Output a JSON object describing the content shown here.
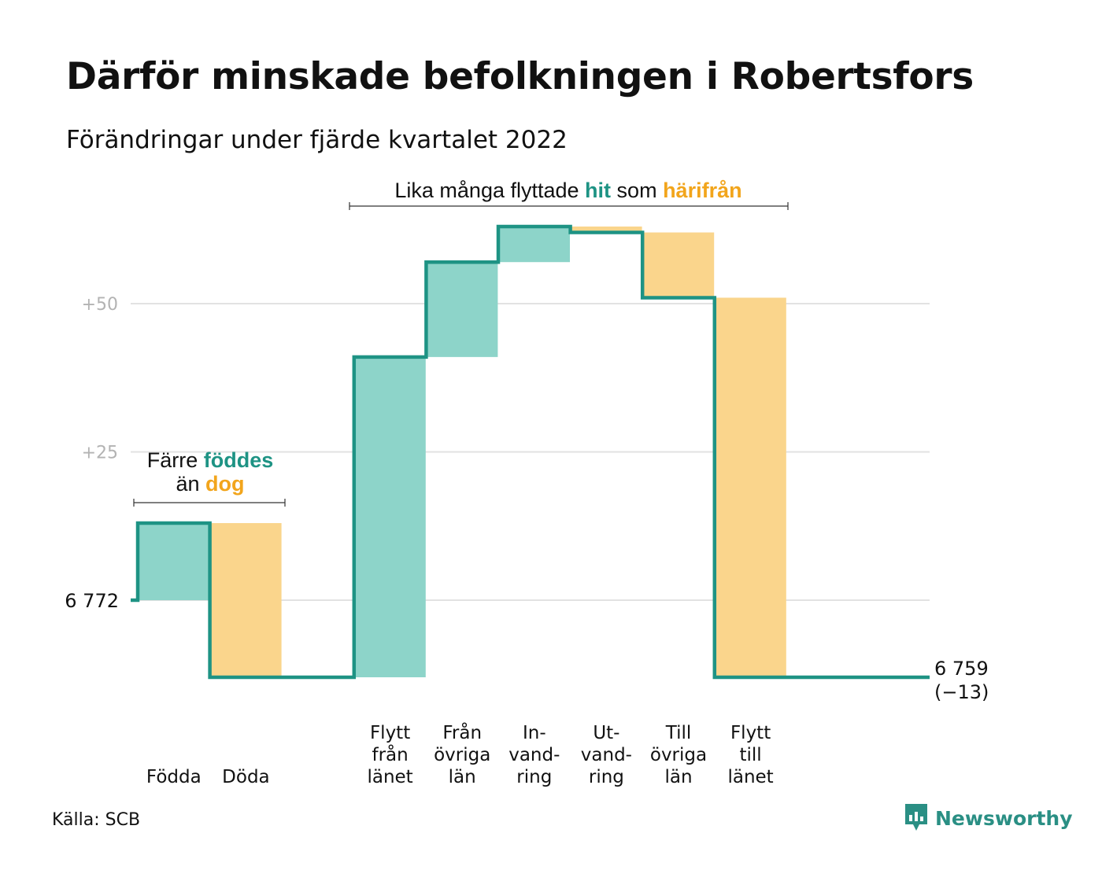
{
  "title": "Därför minskade befolkningen i Robertsfors",
  "subtitle": "Förändringar under fjärde kvartalet 2022",
  "source": "Källa: SCB",
  "brand": "Newsworthy",
  "colors": {
    "increase": "#8dd4c9",
    "decrease": "#fad58c",
    "line": "#1e9384",
    "grid": "#e2e2e2",
    "teal_text": "#1e9384",
    "orange_text": "#f2a51c"
  },
  "annotations": {
    "natural": {
      "line1_pre": "Färre ",
      "line1_hl": "föddes",
      "line2_pre": "än ",
      "line2_hl": "dog"
    },
    "migration": {
      "pre": "Lika många flyttade ",
      "hl1": "hit",
      "mid": " som ",
      "hl2": "härifrån"
    }
  },
  "chart_data": {
    "type": "waterfall",
    "start_value": 6772,
    "start_label": "6 772",
    "end_value": 6759,
    "end_label": "6 759",
    "end_change_label": "(−13)",
    "y_ticks": [
      {
        "value": 25,
        "label": "+25"
      },
      {
        "value": 50,
        "label": "+50"
      }
    ],
    "ylim": [
      -16,
      60
    ],
    "steps": [
      {
        "label_lines": [
          "Födda"
        ],
        "change": 13
      },
      {
        "label_lines": [
          "Döda"
        ],
        "change": -26
      },
      {
        "label_lines": [
          ""
        ],
        "change": 0
      },
      {
        "label_lines": [
          "Flytt",
          "från",
          "länet"
        ],
        "change": 54
      },
      {
        "label_lines": [
          "Från",
          "övriga",
          "län"
        ],
        "change": 16
      },
      {
        "label_lines": [
          "In-",
          "vand-",
          "ring"
        ],
        "change": 6
      },
      {
        "label_lines": [
          "Ut-",
          "vand-",
          "ring"
        ],
        "change": -1
      },
      {
        "label_lines": [
          "Till",
          "övriga",
          "län"
        ],
        "change": -11
      },
      {
        "label_lines": [
          "Flytt",
          "till",
          "länet"
        ],
        "change": -64
      }
    ]
  }
}
